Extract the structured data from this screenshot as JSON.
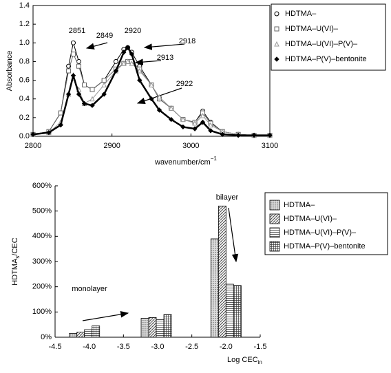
{
  "chart_data": [
    {
      "type": "line",
      "ylabel": "Absorbance",
      "xlabel": {
        "main": "wavenumber/cm",
        "sup": "−1"
      },
      "xlim": [
        2800,
        3100
      ],
      "xticks": [
        2800,
        2900,
        3000,
        3100
      ],
      "ylim": [
        0,
        1.4
      ],
      "yticks": [
        {
          "value": 0,
          "label": "0.0"
        },
        0.2,
        0.4,
        0.6,
        0.8,
        {
          "value": 1,
          "label": "1.0"
        },
        1.2,
        1.4
      ],
      "x": [
        2800,
        2820,
        2835,
        2845,
        2851,
        2858,
        2865,
        2875,
        2890,
        2905,
        2915,
        2920,
        2925,
        2935,
        2950,
        2960,
        2975,
        2990,
        3005,
        3015,
        3025,
        3040,
        3060,
        3080,
        3100
      ],
      "series": [
        {
          "name": "HDTMA–",
          "color": "#000000",
          "values": [
            0.02,
            0.05,
            0.25,
            0.75,
            1.0,
            0.8,
            0.55,
            0.5,
            0.6,
            0.8,
            0.93,
            0.95,
            0.9,
            0.75,
            0.55,
            0.4,
            0.3,
            0.18,
            0.15,
            0.27,
            0.15,
            0.05,
            0.02,
            0.01,
            0.01
          ]
        },
        {
          "name": "HDTMA–U(VI)–",
          "color": "#666666",
          "values": [
            0.02,
            0.05,
            0.25,
            0.7,
            0.88,
            0.75,
            0.55,
            0.5,
            0.6,
            0.72,
            0.78,
            0.8,
            0.8,
            0.72,
            0.55,
            0.4,
            0.3,
            0.18,
            0.15,
            0.25,
            0.14,
            0.05,
            0.02,
            0.01,
            0.01
          ]
        },
        {
          "name": "HDTMA–U(VI)–P(V)–",
          "color": "#999999",
          "values": [
            0.02,
            0.04,
            0.15,
            0.45,
            0.62,
            0.5,
            0.35,
            0.4,
            0.55,
            0.7,
            0.78,
            0.8,
            0.78,
            0.7,
            0.55,
            0.42,
            0.3,
            0.18,
            0.14,
            0.22,
            0.12,
            0.05,
            0.02,
            0.01,
            0.01
          ]
        },
        {
          "name": "HDTMA–P(V)–bentonite",
          "color": "#000000",
          "values": [
            0.02,
            0.04,
            0.12,
            0.45,
            0.65,
            0.45,
            0.35,
            0.33,
            0.45,
            0.7,
            0.9,
            0.95,
            0.88,
            0.6,
            0.4,
            0.28,
            0.18,
            0.1,
            0.08,
            0.15,
            0.06,
            0.02,
            0.01,
            0.01,
            0.01
          ]
        }
      ],
      "annotations": [
        "2851",
        "2849",
        "2920",
        "2918",
        "2913",
        "2922"
      ]
    },
    {
      "type": "bar",
      "ylabel": {
        "main": "HDTMA",
        "sub": "s",
        "end": "/CEC"
      },
      "xlabel": {
        "main": "Log CEC",
        "sub": "in"
      },
      "xlim": [
        -4.5,
        -1.5
      ],
      "xticks": [
        -4.5,
        {
          "value": -4,
          "label": "-4.0"
        },
        -3.5,
        {
          "value": -3,
          "label": "-3.0"
        },
        -2.5,
        {
          "value": -2,
          "label": "-2.0"
        },
        -1.5
      ],
      "ylim": [
        0,
        600
      ],
      "yticks": [
        {
          "value": 0,
          "label": "0%"
        },
        {
          "value": 100,
          "label": "100%"
        },
        {
          "value": 200,
          "label": "200%"
        },
        {
          "value": 300,
          "label": "300%"
        },
        {
          "value": 400,
          "label": "400%"
        },
        {
          "value": 500,
          "label": "500%"
        },
        {
          "value": 600,
          "label": "600%"
        }
      ],
      "x": [
        -4.07,
        -3.02,
        -2.0
      ],
      "series": [
        {
          "name": "HDTMA–",
          "color": "#aaaaaa",
          "values": [
            15,
            75,
            390
          ]
        },
        {
          "name": "HDTMA–U(VI)–",
          "color": "#888888",
          "values": [
            20,
            78,
            520
          ]
        },
        {
          "name": "HDTMA–U(VI)–P(V)–",
          "color": "#666666",
          "values": [
            30,
            70,
            210
          ]
        },
        {
          "name": "HDTMA–P(V)–bentonite",
          "color": "#444444",
          "values": [
            45,
            90,
            205
          ]
        }
      ],
      "annotations": [
        "monolayer",
        "bilayer"
      ]
    }
  ]
}
